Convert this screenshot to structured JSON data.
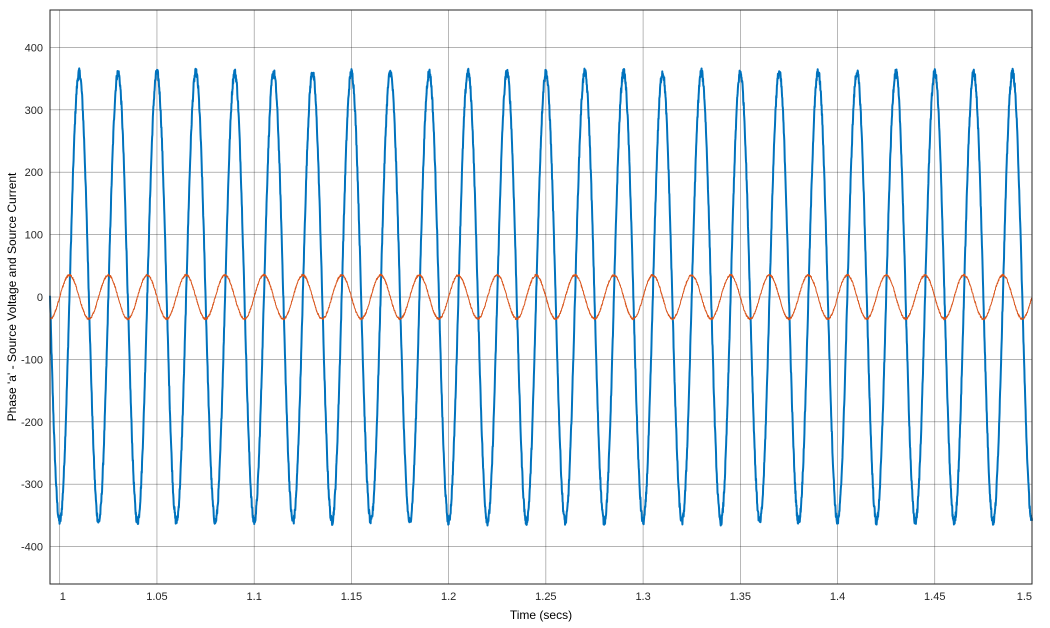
{
  "chart_data": {
    "type": "line",
    "xlabel": "Time (secs)",
    "ylabel": "Phase 'a' - Source Voltage and Source Current",
    "xlim": [
      0.995,
      1.5
    ],
    "ylim": [
      -460,
      460
    ],
    "x_ticks": [
      1,
      1.05,
      1.1,
      1.15,
      1.2,
      1.25,
      1.3,
      1.35,
      1.4,
      1.45,
      1.5
    ],
    "x_tick_labels": [
      "1",
      "1.05",
      "1.1",
      "1.15",
      "1.2",
      "1.25",
      "1.3",
      "1.35",
      "1.4",
      "1.45",
      "1.5"
    ],
    "y_ticks": [
      400,
      300,
      200,
      100,
      0,
      -100,
      -200,
      -300,
      -400
    ],
    "y_tick_labels": [
      "400",
      "300",
      "200",
      "100",
      "0",
      "-100",
      "-200",
      "-300",
      "-400"
    ],
    "grid": true,
    "series": [
      {
        "color": "#0072BD",
        "waveform": "sine",
        "frequency_hz": 50,
        "amplitude": 360,
        "phase_deg": -90,
        "noise": "high-frequency ripple",
        "x_start": 0.995,
        "x_end": 1.5
      },
      {
        "color": "#D95319",
        "waveform": "sine",
        "frequency_hz": 50,
        "amplitude": 35,
        "phase_deg": 0,
        "noise": "small ripple",
        "x_start": 0.995,
        "x_end": 1.5
      }
    ]
  }
}
